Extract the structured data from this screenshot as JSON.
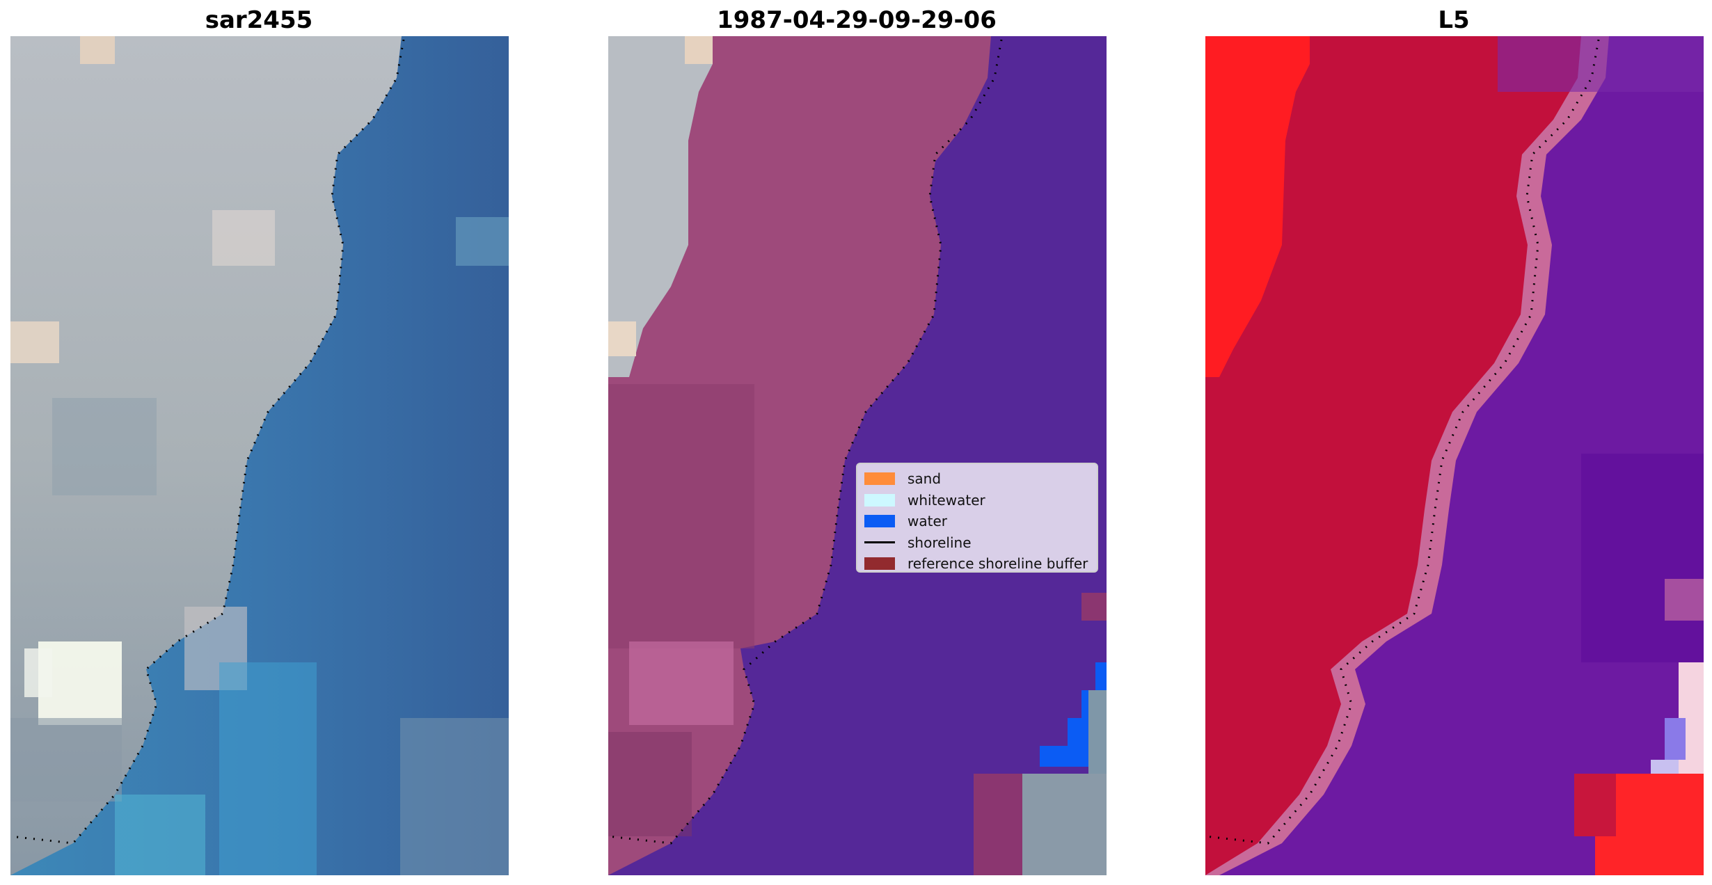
{
  "panels": [
    {
      "title": "sar2455"
    },
    {
      "title": "1987-04-29-09-29-06"
    },
    {
      "title": "L5"
    }
  ],
  "legend": {
    "items": [
      {
        "label": "sand",
        "kind": "patch",
        "color": "#ff8c3a"
      },
      {
        "label": "whitewater",
        "kind": "patch",
        "color": "#cdf8ff"
      },
      {
        "label": "water",
        "kind": "patch",
        "color": "#0b5cf4"
      },
      {
        "label": "shoreline",
        "kind": "line",
        "color": "#000000"
      },
      {
        "label": "reference shoreline buffer",
        "kind": "patch",
        "color": "#922a2e"
      }
    ]
  },
  "colors": {
    "water_rgb": "#3a6ea5",
    "land_rgb": "#a8b0b8",
    "land_class_overlay": "#a04a7a",
    "water_class_overlay": "#552898",
    "index_positive": "#c0103a",
    "index_negative": "#6a12a0"
  }
}
